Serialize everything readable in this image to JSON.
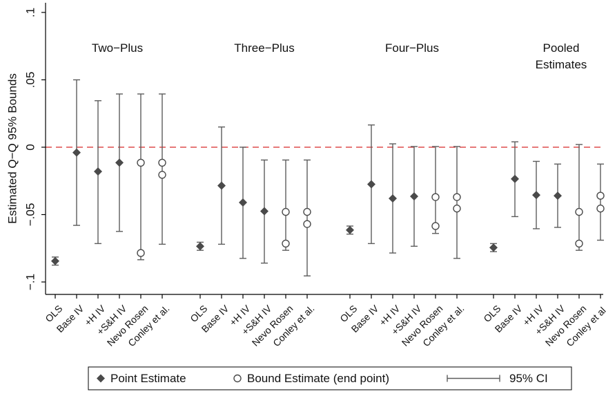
{
  "chart_data": {
    "type": "scatter",
    "ylabel": "Estimated Q−Q 95% Bounds",
    "xlabel": "",
    "ylim": [
      -0.11,
      0.1
    ],
    "y_ticks": [
      {
        "value": 0.1,
        "label": ".1"
      },
      {
        "value": 0.05,
        "label": ".05"
      },
      {
        "value": 0,
        "label": "0"
      },
      {
        "value": -0.05,
        "label": "−.05"
      },
      {
        "value": -0.1,
        "label": "−.1"
      }
    ],
    "reference_line": {
      "y": 0,
      "style": "dashed",
      "color": "#d62728"
    },
    "groups": [
      {
        "title": [
          "Two−Plus"
        ],
        "estimators": [
          {
            "label": "OLS",
            "point": -0.0845,
            "ci": [
              -0.0875,
              -0.0815
            ]
          },
          {
            "label": "Base IV",
            "point": -0.004,
            "ci": [
              -0.058,
              0.05
            ]
          },
          {
            "label": "+H IV",
            "point": -0.018,
            "ci": [
              -0.0715,
              0.0345
            ]
          },
          {
            "label": "+S&H IV",
            "point": -0.0115,
            "ci": [
              -0.0625,
              0.0395
            ]
          },
          {
            "label": "Nevo Rosen",
            "bounds": [
              -0.0115,
              -0.0785
            ],
            "ci": [
              -0.0835,
              0.0395
            ]
          },
          {
            "label": "Conley et al.",
            "bounds": [
              -0.0115,
              -0.0205
            ],
            "ci": [
              -0.072,
              0.0395
            ]
          }
        ]
      },
      {
        "title": [
          "Three−Plus"
        ],
        "estimators": [
          {
            "label": "OLS",
            "point": -0.0735,
            "ci": [
              -0.0765,
              -0.0705
            ]
          },
          {
            "label": "Base IV",
            "point": -0.0285,
            "ci": [
              -0.072,
              0.015
            ]
          },
          {
            "label": "+H IV",
            "point": -0.041,
            "ci": [
              -0.0825,
              0.0
            ]
          },
          {
            "label": "+S&H IV",
            "point": -0.0475,
            "ci": [
              -0.086,
              -0.0095
            ]
          },
          {
            "label": "Nevo Rosen",
            "bounds": [
              -0.048,
              -0.0715
            ],
            "ci": [
              -0.0765,
              -0.0095
            ]
          },
          {
            "label": "Conley et al.",
            "bounds": [
              -0.048,
              -0.057
            ],
            "ci": [
              -0.0955,
              -0.0095
            ]
          }
        ]
      },
      {
        "title": [
          "Four−Plus"
        ],
        "estimators": [
          {
            "label": "OLS",
            "point": -0.0615,
            "ci": [
              -0.0645,
              -0.0585
            ]
          },
          {
            "label": "Base IV",
            "point": -0.0275,
            "ci": [
              -0.0715,
              0.0165
            ]
          },
          {
            "label": "+H IV",
            "point": -0.038,
            "ci": [
              -0.0785,
              0.0025
            ]
          },
          {
            "label": "+S&H IV",
            "point": -0.0365,
            "ci": [
              -0.0735,
              0.0005
            ]
          },
          {
            "label": "Nevo Rosen",
            "bounds": [
              -0.037,
              -0.0585
            ],
            "ci": [
              -0.064,
              0.0005
            ]
          },
          {
            "label": "Conley et al.",
            "bounds": [
              -0.037,
              -0.0455
            ],
            "ci": [
              -0.0825,
              0.0005
            ]
          }
        ]
      },
      {
        "title": [
          "Pooled",
          "Estimates"
        ],
        "estimators": [
          {
            "label": "OLS",
            "point": -0.0745,
            "ci": [
              -0.0775,
              -0.0715
            ]
          },
          {
            "label": "Base IV",
            "point": -0.0235,
            "ci": [
              -0.0515,
              0.004
            ]
          },
          {
            "label": "+H IV",
            "point": -0.0355,
            "ci": [
              -0.0605,
              -0.0105
            ]
          },
          {
            "label": "+S&H IV",
            "point": -0.036,
            "ci": [
              -0.0595,
              -0.0125
            ]
          },
          {
            "label": "Nevo Rosen",
            "bounds": [
              -0.048,
              -0.0715
            ],
            "ci": [
              -0.0765,
              0.002
            ]
          },
          {
            "label": "Conley et al.",
            "bounds": [
              -0.036,
              -0.0455
            ],
            "ci": [
              -0.069,
              -0.0125
            ]
          }
        ]
      }
    ],
    "legend": {
      "placement": "bottom",
      "entries": [
        {
          "marker": "diamond",
          "label": "Point Estimate"
        },
        {
          "marker": "hollow-circle",
          "label": "Bound Estimate (end point)"
        },
        {
          "marker": "capped-line",
          "label": "95% CI"
        }
      ]
    },
    "colors": {
      "marker": "#4a4a4a",
      "ci": "#5c5c5c",
      "axis": "#000000",
      "reference": "#d62728"
    }
  }
}
